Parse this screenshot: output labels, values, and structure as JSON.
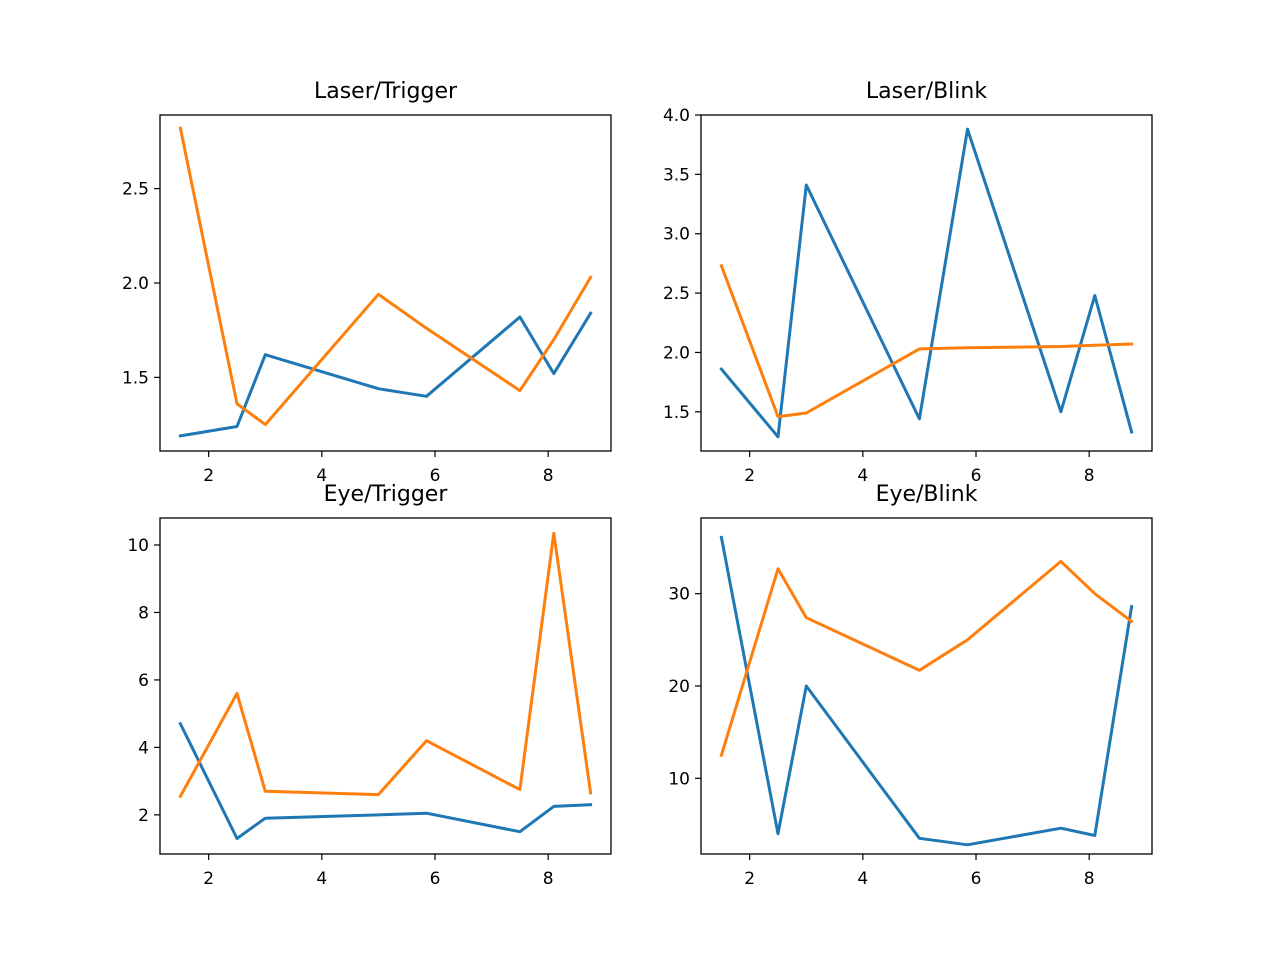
{
  "chart_data": [
    {
      "type": "line",
      "title": "Laser/Trigger",
      "x": [
        1.5,
        2.5,
        3.0,
        5.0,
        5.85,
        7.5,
        8.1,
        8.75
      ],
      "xlim": [
        1.14,
        9.11
      ],
      "ylim": [
        1.11,
        2.89
      ],
      "xticks": [
        2,
        4,
        6,
        8
      ],
      "yticks": [
        1.5,
        2.0,
        2.5
      ],
      "ytick_labels": [
        "1.5",
        "2.0",
        "2.5"
      ],
      "series": [
        {
          "color": "#1f77b4",
          "values": [
            1.19,
            1.24,
            1.62,
            1.44,
            1.4,
            1.82,
            1.52,
            1.84
          ]
        },
        {
          "color": "#ff7f0e",
          "values": [
            2.82,
            1.36,
            1.25,
            1.94,
            1.76,
            1.43,
            1.7,
            2.03
          ]
        }
      ]
    },
    {
      "type": "line",
      "title": "Laser/Blink",
      "x": [
        1.5,
        2.5,
        3.0,
        5.0,
        5.85,
        7.5,
        8.1,
        8.75
      ],
      "xlim": [
        1.14,
        9.11
      ],
      "ylim": [
        1.17,
        4.0
      ],
      "xticks": [
        2,
        4,
        6,
        8
      ],
      "yticks": [
        1.5,
        2.0,
        2.5,
        3.0,
        3.5,
        4.0
      ],
      "ytick_labels": [
        "1.5",
        "2.0",
        "2.5",
        "3.0",
        "3.5",
        "4.0"
      ],
      "series": [
        {
          "color": "#1f77b4",
          "values": [
            1.86,
            1.29,
            3.41,
            1.44,
            3.88,
            1.5,
            2.48,
            1.33
          ]
        },
        {
          "color": "#ff7f0e",
          "values": [
            2.73,
            1.46,
            1.49,
            2.03,
            2.04,
            2.05,
            2.06,
            2.07
          ]
        }
      ]
    },
    {
      "type": "line",
      "title": "Eye/Trigger",
      "x": [
        1.5,
        2.5,
        3.0,
        5.0,
        5.85,
        7.5,
        8.1,
        8.75
      ],
      "xlim": [
        1.14,
        9.11
      ],
      "ylim": [
        0.84,
        10.8
      ],
      "xticks": [
        2,
        4,
        6,
        8
      ],
      "yticks": [
        2,
        4,
        6,
        8,
        10
      ],
      "ytick_labels": [
        "2",
        "4",
        "6",
        "8",
        "10"
      ],
      "series": [
        {
          "color": "#1f77b4",
          "values": [
            4.7,
            1.3,
            1.9,
            2.0,
            2.05,
            1.5,
            2.25,
            2.3
          ]
        },
        {
          "color": "#ff7f0e",
          "values": [
            2.55,
            5.6,
            2.7,
            2.6,
            4.2,
            2.75,
            10.35,
            2.65
          ]
        }
      ]
    },
    {
      "type": "line",
      "title": "Eye/Blink",
      "x": [
        1.5,
        2.5,
        3.0,
        5.0,
        5.85,
        7.5,
        8.1,
        8.75
      ],
      "xlim": [
        1.14,
        9.11
      ],
      "ylim": [
        1.8,
        38.2
      ],
      "xticks": [
        2,
        4,
        6,
        8
      ],
      "yticks": [
        10,
        20,
        30
      ],
      "ytick_labels": [
        "10",
        "20",
        "30"
      ],
      "series": [
        {
          "color": "#1f77b4",
          "values": [
            36.1,
            4.0,
            20.0,
            3.5,
            2.8,
            4.6,
            3.8,
            28.6
          ]
        },
        {
          "color": "#ff7f0e",
          "values": [
            12.5,
            32.7,
            27.4,
            21.7,
            25.0,
            33.5,
            30.0,
            27.0
          ]
        }
      ]
    }
  ]
}
